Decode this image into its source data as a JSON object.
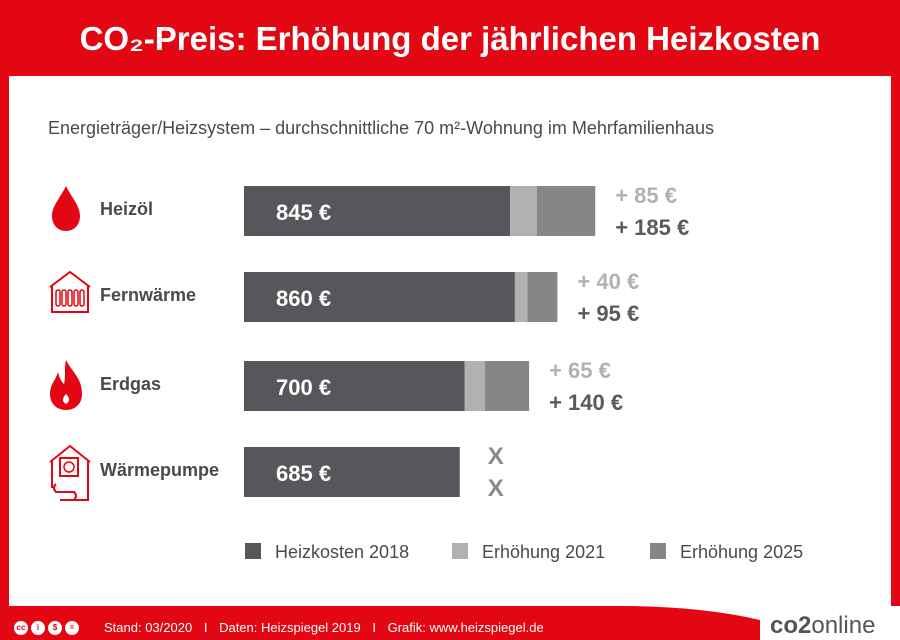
{
  "header": {
    "title": "CO₂-Preis: Erhöhung der jährlichen Heizkosten"
  },
  "subtitle": "Energieträger/Heizsystem – durchschnittliche 70 m²-Wohnung im Mehrfamilienhaus",
  "colors": {
    "brand_red": "#e30613",
    "base": "#58565a",
    "inc2021": "#b1b1b1",
    "inc2025": "#868686",
    "label_text": "#4a4a4a",
    "x_marks": "#8a8a8a"
  },
  "chart_data": {
    "type": "bar",
    "orientation": "horizontal",
    "stacked": true,
    "categories": [
      "Heizöl",
      "Fernwärme",
      "Erdgas",
      "Wärmepumpe"
    ],
    "category_icons": [
      "oil-drop-icon",
      "radiator-house-icon",
      "gas-flame-icon",
      "heat-pump-house-icon"
    ],
    "series": [
      {
        "name": "Heizkosten 2018",
        "values": [
          845,
          860,
          700,
          685
        ],
        "labels": [
          "845 €",
          "860 €",
          "700 €",
          "685 €"
        ]
      },
      {
        "name": "Erhöhung 2021",
        "values": [
          85,
          40,
          65,
          0
        ],
        "labels": [
          "+ 85 €",
          "+ 40 €",
          "+ 65 €",
          "X"
        ]
      },
      {
        "name": "Erhöhung 2025",
        "values": [
          185,
          95,
          140,
          0
        ],
        "labels": [
          "+ 185 €",
          "+ 95 €",
          "+ 140 €",
          "X"
        ]
      }
    ],
    "legend_position": "bottom",
    "grid": false
  },
  "footer": {
    "license_icons": [
      "cc-icon",
      "by-icon",
      "nc-icon",
      "nd-icon"
    ],
    "license_glyphs": [
      "cc",
      "i",
      "$",
      "="
    ],
    "stand": "Stand: 03/2020",
    "daten": "Daten: Heizspiegel 2019",
    "grafik": "Grafik: www.heizspiegel.de",
    "separator": "I",
    "brand_bold": "co2",
    "brand_rest": "online"
  }
}
